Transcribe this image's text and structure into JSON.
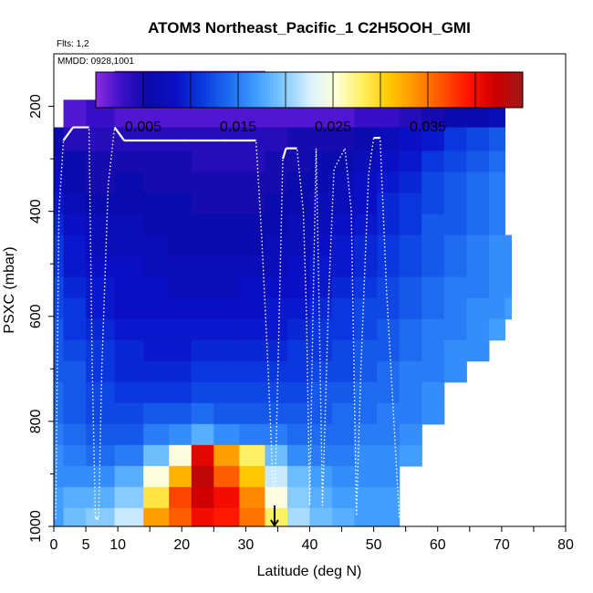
{
  "chart_data": {
    "type": "heatmap",
    "title": "ATOM3 Northeast_Pacific_1 C2H5OOH_GMI",
    "flights_label": "Flts: 1,2",
    "dates_label": "MMDD: 0928,1001",
    "xlabel": "Latitude (deg N)",
    "ylabel": "PSXC (mbar)",
    "xlim": [
      0,
      80
    ],
    "ylim": [
      1000,
      100
    ],
    "x_ticks": [
      0,
      5,
      10,
      20,
      30,
      40,
      50,
      60,
      70,
      80
    ],
    "y_ticks": [
      200,
      400,
      600,
      800,
      1000
    ],
    "colorbar": {
      "min": 0.0,
      "max": 0.045,
      "tick_values": [
        0.005,
        0.015,
        0.025,
        0.035
      ],
      "tick_labels": [
        "0.005",
        "0.015",
        "0.025",
        "0.035"
      ],
      "colors": [
        "#8b2be2",
        "#3a0fc8",
        "#0a0aa8",
        "#0a10c8",
        "#0a3ae0",
        "#1e6cf0",
        "#3e9cff",
        "#7ec8ff",
        "#d8f0ff",
        "#ffffd8",
        "#fff060",
        "#ffc800",
        "#ff9000",
        "#ff5000",
        "#ff1000",
        "#cc0000",
        "#a01818"
      ]
    },
    "pressure_levels": [
      160,
      215,
      265,
      305,
      345,
      385,
      425,
      465,
      505,
      545,
      585,
      625,
      665,
      705,
      745,
      785,
      825,
      865,
      905,
      945,
      985
    ],
    "curtain": [
      {
        "lat_start": 0,
        "lat_end": 1.5,
        "values": [
          null,
          null,
          0.006,
          0.007,
          0.008,
          0.009,
          0.01,
          0.011,
          0.011,
          0.012,
          0.012,
          0.013,
          0.013,
          0.013,
          0.014,
          0.014,
          0.015,
          0.016,
          0.016,
          0.017,
          0.017
        ]
      },
      {
        "lat_start": 1.5,
        "lat_end": 5,
        "values": [
          null,
          0.002,
          0.004,
          0.006,
          0.006,
          0.007,
          0.008,
          0.009,
          0.009,
          0.01,
          0.011,
          0.011,
          0.012,
          0.013,
          0.013,
          0.013,
          0.014,
          0.015,
          0.016,
          0.018,
          0.019
        ]
      },
      {
        "lat_start": 5,
        "lat_end": 9.5,
        "values": [
          null,
          0.003,
          0.004,
          0.005,
          0.005,
          0.006,
          0.007,
          0.007,
          0.008,
          0.009,
          0.009,
          0.01,
          0.011,
          0.011,
          0.012,
          0.012,
          0.013,
          0.014,
          0.016,
          0.018,
          0.02
        ]
      },
      {
        "lat_start": 9.5,
        "lat_end": 14,
        "values": [
          0.0,
          0.002,
          0.004,
          0.005,
          0.006,
          0.006,
          0.007,
          0.007,
          0.008,
          0.008,
          0.008,
          0.009,
          0.01,
          0.01,
          0.011,
          0.012,
          0.013,
          0.015,
          0.018,
          0.02,
          0.022
        ]
      },
      {
        "lat_start": 14,
        "lat_end": 18,
        "values": [
          0.0,
          0.002,
          0.004,
          0.005,
          0.005,
          0.006,
          0.006,
          0.007,
          0.007,
          0.008,
          0.008,
          0.009,
          0.009,
          0.01,
          0.011,
          0.013,
          0.015,
          0.019,
          0.025,
          0.029,
          0.033
        ]
      },
      {
        "lat_start": 18,
        "lat_end": 21.5,
        "values": [
          0.0,
          0.002,
          0.004,
          0.005,
          0.005,
          0.006,
          0.006,
          0.006,
          0.007,
          0.007,
          0.008,
          0.009,
          0.009,
          0.01,
          0.011,
          0.013,
          0.016,
          0.025,
          0.032,
          0.037,
          0.036
        ]
      },
      {
        "lat_start": 21.5,
        "lat_end": 25,
        "values": [
          0.0,
          0.002,
          0.004,
          0.004,
          0.005,
          0.005,
          0.006,
          0.006,
          0.007,
          0.007,
          0.008,
          0.009,
          0.01,
          0.011,
          0.012,
          0.014,
          0.018,
          0.041,
          0.043,
          0.042,
          0.04
        ]
      },
      {
        "lat_start": 25,
        "lat_end": 29,
        "values": [
          0.0,
          0.002,
          0.004,
          0.004,
          0.005,
          0.005,
          0.006,
          0.006,
          0.007,
          0.007,
          0.008,
          0.009,
          0.01,
          0.011,
          0.012,
          0.013,
          0.016,
          0.033,
          0.036,
          0.04,
          0.039
        ]
      },
      {
        "lat_start": 29,
        "lat_end": 33,
        "values": [
          0.0,
          0.002,
          0.004,
          0.004,
          0.005,
          0.005,
          0.006,
          0.006,
          0.007,
          0.008,
          0.008,
          0.009,
          0.01,
          0.011,
          0.012,
          0.013,
          0.015,
          0.028,
          0.031,
          0.034,
          0.035
        ]
      },
      {
        "lat_start": 33,
        "lat_end": 36.5,
        "values": [
          null,
          0.002,
          0.004,
          0.005,
          0.005,
          0.006,
          0.006,
          0.007,
          0.007,
          0.008,
          0.009,
          0.009,
          0.01,
          0.011,
          0.012,
          0.013,
          0.015,
          0.019,
          0.022,
          0.025,
          0.028
        ]
      },
      {
        "lat_start": 36.5,
        "lat_end": 40,
        "values": [
          null,
          0.002,
          0.005,
          0.005,
          0.006,
          0.006,
          0.007,
          0.007,
          0.008,
          0.008,
          0.009,
          0.01,
          0.011,
          0.011,
          0.012,
          0.013,
          0.014,
          0.016,
          0.019,
          0.02,
          0.021
        ]
      },
      {
        "lat_start": 40,
        "lat_end": 43.5,
        "values": [
          null,
          0.002,
          0.005,
          0.006,
          0.006,
          0.007,
          0.007,
          0.008,
          0.009,
          0.009,
          0.01,
          0.011,
          0.011,
          0.012,
          0.013,
          0.013,
          0.014,
          0.015,
          0.017,
          0.018,
          0.019
        ]
      },
      {
        "lat_start": 43.5,
        "lat_end": 47,
        "values": [
          null,
          0.002,
          0.005,
          0.006,
          0.007,
          0.007,
          0.008,
          0.009,
          0.009,
          0.01,
          0.011,
          0.011,
          0.012,
          0.012,
          0.013,
          0.014,
          0.014,
          0.015,
          0.016,
          0.017,
          0.018
        ]
      },
      {
        "lat_start": 47,
        "lat_end": 50.5,
        "values": [
          null,
          0.003,
          0.006,
          0.007,
          0.008,
          0.008,
          0.009,
          0.01,
          0.01,
          0.011,
          0.012,
          0.012,
          0.013,
          0.013,
          0.014,
          0.014,
          0.015,
          0.016,
          0.016,
          0.017,
          0.017
        ]
      },
      {
        "lat_start": 50.5,
        "lat_end": 54,
        "values": [
          null,
          0.003,
          0.007,
          0.008,
          0.009,
          0.01,
          0.01,
          0.011,
          0.011,
          0.012,
          0.012,
          0.013,
          0.013,
          0.014,
          0.014,
          0.015,
          0.015,
          0.016,
          0.016,
          0.017,
          0.017
        ]
      },
      {
        "lat_start": 54,
        "lat_end": 57.5,
        "values": [
          null,
          0.004,
          0.008,
          0.009,
          0.01,
          0.011,
          0.011,
          0.012,
          0.012,
          0.013,
          0.013,
          0.014,
          0.014,
          0.015,
          0.015,
          0.015,
          0.016,
          0.017,
          null,
          null,
          null
        ]
      },
      {
        "lat_start": 57.5,
        "lat_end": 61,
        "values": [
          null,
          0.005,
          0.009,
          0.011,
          0.012,
          0.012,
          0.013,
          0.013,
          0.013,
          0.014,
          0.014,
          0.015,
          0.015,
          0.015,
          0.016,
          0.016,
          null,
          null,
          null,
          null,
          null
        ]
      },
      {
        "lat_start": 61,
        "lat_end": 64.5,
        "values": [
          null,
          0.006,
          0.011,
          0.012,
          0.013,
          0.013,
          0.013,
          0.014,
          0.014,
          0.015,
          0.015,
          0.015,
          0.016,
          0.016,
          null,
          null,
          null,
          null,
          null,
          null,
          null
        ]
      },
      {
        "lat_start": 64.5,
        "lat_end": 68,
        "values": [
          null,
          0.006,
          0.012,
          0.013,
          0.014,
          0.014,
          0.014,
          0.015,
          0.015,
          0.015,
          0.016,
          0.016,
          0.016,
          null,
          null,
          null,
          null,
          null,
          null,
          null,
          null
        ]
      },
      {
        "lat_start": 68,
        "lat_end": 70.5,
        "values": [
          null,
          0.007,
          0.013,
          0.014,
          0.015,
          0.015,
          0.015,
          0.016,
          0.016,
          0.016,
          0.016,
          0.017,
          null,
          null,
          null,
          null,
          null,
          null,
          null,
          null,
          null
        ]
      },
      {
        "lat_start": 70.5,
        "lat_end": 71.5,
        "values": [
          null,
          null,
          null,
          null,
          null,
          null,
          null,
          0.016,
          0.016,
          0.016,
          0.017,
          null,
          null,
          null,
          null,
          null,
          null,
          null,
          null,
          null,
          null
        ]
      }
    ],
    "flight_tracks": [
      {
        "name": "flight-1",
        "points": [
          [
            0.3,
            985
          ],
          [
            0.8,
            400
          ],
          [
            1.5,
            265
          ],
          [
            3,
            240
          ],
          [
            5.5,
            240
          ],
          [
            6,
            700
          ],
          [
            6.5,
            985
          ],
          [
            7,
            985
          ],
          [
            7.5,
            700
          ],
          [
            8.5,
            350
          ],
          [
            9.5,
            240
          ],
          [
            11,
            265
          ],
          [
            16,
            265
          ],
          [
            21,
            265
          ],
          [
            26,
            265
          ],
          [
            31,
            265
          ],
          [
            31.6,
            265
          ],
          [
            32.5,
            450
          ],
          [
            33.5,
            700
          ],
          [
            34.5,
            985
          ]
        ]
      },
      {
        "name": "flight-2",
        "points": [
          [
            34.5,
            985
          ],
          [
            35.8,
            300
          ],
          [
            36.3,
            280
          ],
          [
            38,
            280
          ],
          [
            39,
            400
          ],
          [
            39.5,
            600
          ],
          [
            40,
            960
          ],
          [
            40.5,
            600
          ],
          [
            41,
            280
          ],
          [
            41.5,
            600
          ],
          [
            42,
            960
          ],
          [
            43,
            550
          ],
          [
            43.8,
            320
          ],
          [
            45.5,
            280
          ],
          [
            46.5,
            400
          ],
          [
            47.3,
            980
          ],
          [
            48,
            700
          ],
          [
            49.2,
            330
          ],
          [
            50,
            260
          ],
          [
            51,
            260
          ],
          [
            52,
            550
          ],
          [
            54,
            985
          ]
        ]
      }
    ],
    "annotations": [
      {
        "type": "arrow",
        "lat": 34.5,
        "from_pressure": 960,
        "to_pressure": 1000
      }
    ]
  }
}
